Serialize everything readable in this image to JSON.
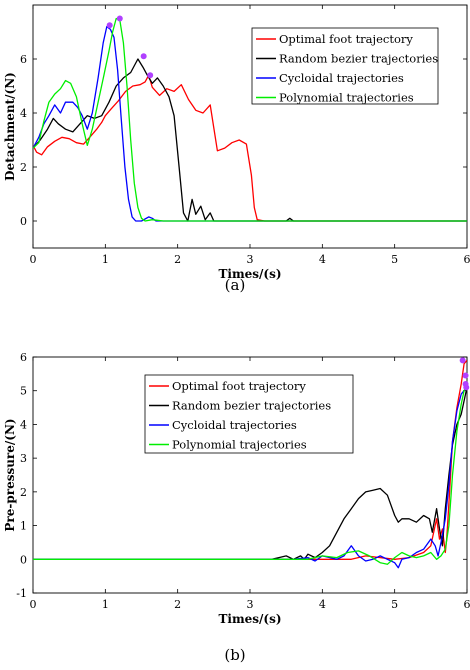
{
  "chart_data": [
    {
      "type": "line",
      "caption": "(a)",
      "xlabel": "Times/(s)",
      "ylabel": "Detachment/(N)",
      "xlim": [
        0,
        6
      ],
      "ylim": [
        -1,
        8
      ],
      "xticks": [
        "0",
        "1",
        "2",
        "3",
        "4",
        "5",
        "6"
      ],
      "yticks": [
        "0",
        "2",
        "4",
        "6"
      ],
      "legend_position": "top-right",
      "series": [
        {
          "name": "Optimal foot trajectory",
          "color": "#ff0000",
          "x": [
            0,
            0.05,
            0.12,
            0.2,
            0.3,
            0.4,
            0.5,
            0.6,
            0.7,
            0.8,
            0.88,
            0.95,
            1.0,
            1.08,
            1.18,
            1.28,
            1.38,
            1.48,
            1.55,
            1.6,
            1.65,
            1.75,
            1.85,
            1.95,
            2.05,
            2.15,
            2.25,
            2.35,
            2.45,
            2.55,
            2.65,
            2.75,
            2.85,
            2.95,
            3.02,
            3.06,
            3.1,
            3.2,
            3.5,
            4.0,
            5.0,
            6.0
          ],
          "y": [
            2.8,
            2.55,
            2.45,
            2.75,
            2.95,
            3.1,
            3.05,
            2.9,
            2.85,
            3.15,
            3.4,
            3.65,
            3.9,
            4.15,
            4.45,
            4.8,
            5.0,
            5.05,
            5.15,
            5.4,
            4.95,
            4.65,
            4.9,
            4.8,
            5.05,
            4.5,
            4.1,
            4.0,
            4.3,
            2.6,
            2.7,
            2.9,
            3.0,
            2.85,
            1.7,
            0.5,
            0.05,
            0.0,
            0.0,
            0.0,
            0.0,
            0.0
          ]
        },
        {
          "name": "Random bezier trajectories",
          "color": "#000000",
          "x": [
            0,
            0.1,
            0.2,
            0.28,
            0.35,
            0.45,
            0.55,
            0.65,
            0.75,
            0.85,
            0.95,
            1.05,
            1.15,
            1.25,
            1.35,
            1.45,
            1.52,
            1.58,
            1.65,
            1.72,
            1.8,
            1.88,
            1.95,
            2.02,
            2.08,
            2.14,
            2.2,
            2.25,
            2.32,
            2.38,
            2.45,
            2.5,
            2.6,
            3.0,
            3.5,
            3.55,
            3.6,
            4.0,
            5.0,
            6.0
          ],
          "y": [
            2.7,
            3.0,
            3.4,
            3.8,
            3.6,
            3.4,
            3.3,
            3.6,
            3.9,
            3.8,
            3.9,
            4.4,
            5.0,
            5.3,
            5.5,
            6.0,
            5.7,
            5.4,
            5.1,
            5.3,
            5.0,
            4.6,
            3.9,
            2.0,
            0.3,
            0.0,
            0.8,
            0.25,
            0.55,
            0.05,
            0.3,
            0.0,
            0.0,
            0.0,
            0.0,
            0.1,
            0.0,
            0.0,
            0.0,
            0.0
          ]
        },
        {
          "name": "Cycloidal trajectories",
          "color": "#0000ff",
          "x": [
            0,
            0.08,
            0.15,
            0.22,
            0.3,
            0.38,
            0.45,
            0.55,
            0.62,
            0.68,
            0.75,
            0.82,
            0.9,
            0.97,
            1.02,
            1.07,
            1.12,
            1.17,
            1.22,
            1.27,
            1.32,
            1.37,
            1.42,
            1.5,
            1.6,
            1.65,
            1.7,
            2.0,
            3.0,
            4.0,
            4.5,
            5.0,
            6.0
          ],
          "y": [
            2.7,
            3.1,
            3.6,
            3.9,
            4.3,
            4.0,
            4.4,
            4.4,
            4.2,
            3.9,
            3.4,
            4.0,
            5.3,
            6.6,
            7.2,
            7.1,
            6.8,
            5.6,
            3.8,
            2.0,
            0.8,
            0.15,
            0.0,
            0.0,
            0.15,
            0.1,
            0.0,
            0.0,
            0.0,
            0.0,
            0.0,
            0.0,
            0.0
          ]
        },
        {
          "name": "Polynomial trajectories",
          "color": "#00ee00",
          "x": [
            0,
            0.08,
            0.15,
            0.22,
            0.3,
            0.38,
            0.45,
            0.52,
            0.6,
            0.68,
            0.75,
            0.82,
            0.9,
            0.98,
            1.05,
            1.1,
            1.15,
            1.2,
            1.25,
            1.3,
            1.35,
            1.4,
            1.45,
            1.5,
            1.55,
            1.65,
            1.8,
            2.0,
            3.0,
            4.0,
            5.0,
            6.0
          ],
          "y": [
            2.7,
            2.9,
            3.7,
            4.4,
            4.7,
            4.9,
            5.2,
            5.1,
            4.6,
            3.6,
            2.8,
            3.4,
            4.4,
            5.4,
            6.3,
            7.0,
            7.5,
            7.45,
            6.6,
            5.0,
            3.0,
            1.4,
            0.5,
            0.1,
            0.0,
            0.05,
            0.0,
            0.0,
            0.0,
            0.0,
            0.0,
            0.0
          ]
        }
      ],
      "peak_markers": [
        {
          "x": 1.06,
          "y": 7.25
        },
        {
          "x": 1.2,
          "y": 7.5
        },
        {
          "x": 1.53,
          "y": 6.1
        },
        {
          "x": 1.62,
          "y": 5.4
        }
      ],
      "marker_color": "#b040ff"
    },
    {
      "type": "line",
      "caption": "(b)",
      "xlabel": "Times/(s)",
      "ylabel": "Pre-pressure/(N)",
      "xlim": [
        0,
        6
      ],
      "ylim": [
        -1,
        6
      ],
      "xticks": [
        "0",
        "1",
        "2",
        "3",
        "4",
        "5",
        "6"
      ],
      "yticks": [
        "-1",
        "0",
        "1",
        "2",
        "3",
        "4",
        "5",
        "6"
      ],
      "legend_position": "top-center",
      "series": [
        {
          "name": "Optimal foot trajectory",
          "color": "#ff0000",
          "x": [
            0,
            3.5,
            4.0,
            4.4,
            4.6,
            4.8,
            5.0,
            5.2,
            5.4,
            5.5,
            5.58,
            5.62,
            5.66,
            5.7,
            5.72,
            5.76,
            5.8,
            5.86,
            5.92,
            5.96,
            6.0
          ],
          "y": [
            0,
            0,
            0.0,
            0.0,
            0.1,
            0.05,
            0.0,
            0.05,
            0.2,
            0.4,
            1.2,
            0.6,
            0.9,
            0.2,
            0.6,
            2.0,
            3.5,
            4.5,
            5.2,
            5.8,
            5.9
          ]
        },
        {
          "name": "Random bezier trajectories",
          "color": "#000000",
          "x": [
            0,
            3.3,
            3.4,
            3.5,
            3.6,
            3.7,
            3.75,
            3.8,
            3.9,
            4.0,
            4.1,
            4.2,
            4.3,
            4.4,
            4.5,
            4.6,
            4.7,
            4.8,
            4.9,
            5.0,
            5.05,
            5.1,
            5.2,
            5.3,
            5.4,
            5.48,
            5.52,
            5.58,
            5.62,
            5.66,
            5.7,
            5.75,
            5.8,
            5.86,
            5.92,
            5.97,
            6.0
          ],
          "y": [
            0,
            0,
            0.05,
            0.1,
            0.0,
            0.1,
            0.0,
            0.15,
            0.05,
            0.2,
            0.4,
            0.8,
            1.2,
            1.5,
            1.8,
            2.0,
            2.05,
            2.1,
            1.9,
            1.3,
            1.1,
            1.2,
            1.2,
            1.1,
            1.3,
            1.2,
            0.8,
            1.5,
            0.9,
            0.4,
            1.5,
            2.5,
            3.4,
            4.0,
            4.3,
            4.8,
            5.1
          ]
        },
        {
          "name": "Cycloidal trajectories",
          "color": "#0000ff",
          "x": [
            0,
            3.6,
            3.8,
            3.9,
            4.0,
            4.2,
            4.3,
            4.4,
            4.5,
            4.6,
            4.7,
            4.8,
            4.9,
            5.0,
            5.05,
            5.1,
            5.2,
            5.3,
            5.4,
            5.5,
            5.56,
            5.6,
            5.65,
            5.7,
            5.75,
            5.8,
            5.86,
            5.92,
            5.96,
            6.0
          ],
          "y": [
            0,
            0,
            0.05,
            -0.05,
            0.1,
            0.0,
            0.1,
            0.4,
            0.1,
            -0.05,
            0.0,
            0.1,
            0.0,
            -0.1,
            -0.25,
            0.0,
            0.05,
            0.2,
            0.3,
            0.6,
            0.4,
            0.1,
            0.6,
            1.2,
            2.2,
            3.5,
            4.4,
            4.9,
            5.0,
            5.1
          ]
        },
        {
          "name": "Polynomial trajectories",
          "color": "#00ee00",
          "x": [
            0,
            3.8,
            4.0,
            4.2,
            4.35,
            4.5,
            4.65,
            4.8,
            4.9,
            5.0,
            5.1,
            5.2,
            5.3,
            5.4,
            5.5,
            5.58,
            5.64,
            5.7,
            5.75,
            5.8,
            5.86,
            5.92,
            5.96,
            6.0
          ],
          "y": [
            0,
            0,
            0.1,
            0.05,
            0.2,
            0.25,
            0.1,
            -0.1,
            -0.15,
            0.05,
            0.2,
            0.1,
            0.05,
            0.1,
            0.2,
            0.0,
            0.1,
            0.3,
            1.0,
            2.5,
            3.8,
            4.6,
            5.0,
            5.2
          ]
        }
      ],
      "peak_markers": [
        {
          "x": 5.94,
          "y": 5.9
        },
        {
          "x": 5.98,
          "y": 5.45
        },
        {
          "x": 5.98,
          "y": 5.2
        },
        {
          "x": 5.99,
          "y": 5.1
        }
      ],
      "marker_color": "#b040ff"
    }
  ]
}
